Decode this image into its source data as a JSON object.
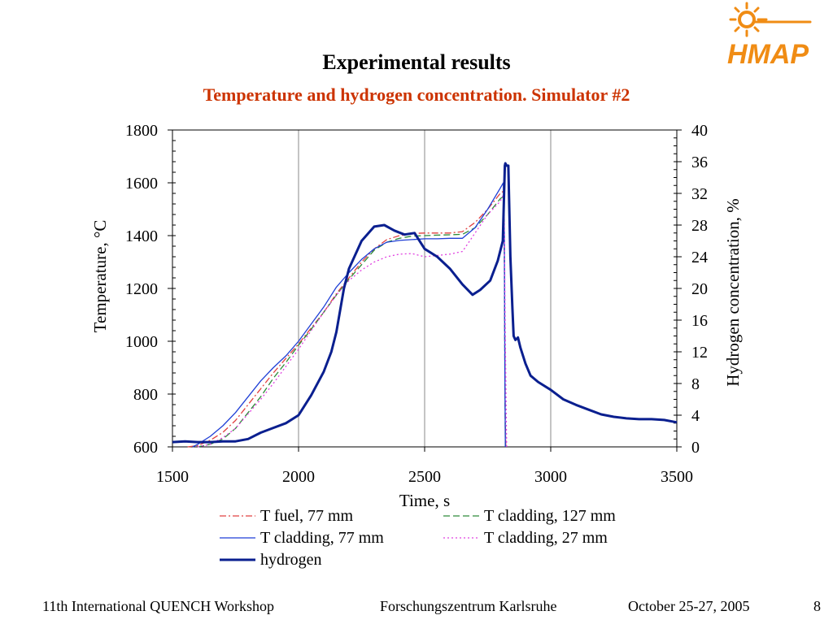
{
  "slide": {
    "title": "Experimental results",
    "subtitle": "Temperature and hydrogen concentration. Simulator #2",
    "logo_text": "HMAP",
    "footer": {
      "workshop": "11th International QUENCH Workshop",
      "institution": "Forschungszentrum Karlsruhe",
      "dates": "October 25-27, 2005",
      "page": "8"
    },
    "colors": {
      "subtitle": "#cc3300",
      "logo": "#f08c14"
    }
  },
  "chart_data": {
    "type": "line",
    "xlabel": "Time, s",
    "ylabel": "Temperature, °C",
    "y2label": "Hydrogen concentration, %",
    "xlim": [
      1500,
      3500
    ],
    "ylim": [
      600,
      1800
    ],
    "y2lim": [
      0,
      40
    ],
    "xticks": [
      1500,
      2000,
      2500,
      3000,
      3500
    ],
    "yticks": [
      600,
      800,
      1000,
      1200,
      1400,
      1600,
      1800
    ],
    "y2ticks": [
      0,
      4,
      8,
      12,
      16,
      20,
      24,
      28,
      32,
      36,
      40
    ],
    "grid": "vertical",
    "legend_position": "bottom",
    "series": [
      {
        "name": "T fuel, 77 mm",
        "axis": "left",
        "color": "#e04040",
        "style": "dashdot",
        "x": [
          1560,
          1600,
          1650,
          1700,
          1750,
          1800,
          1850,
          1900,
          1950,
          2000,
          2050,
          2100,
          2150,
          2200,
          2250,
          2300,
          2350,
          2400,
          2450,
          2500,
          2550,
          2600,
          2650,
          2700,
          2750,
          2800,
          2815,
          2818,
          2820,
          2822
        ],
        "y": [
          600,
          605,
          625,
          655,
          700,
          760,
          820,
          880,
          935,
          990,
          1050,
          1110,
          1180,
          1240,
          1300,
          1350,
          1385,
          1400,
          1408,
          1410,
          1410,
          1410,
          1415,
          1450,
          1500,
          1560,
          1570,
          1000,
          700,
          600
        ]
      },
      {
        "name": "T cladding, 127 mm",
        "axis": "left",
        "color": "#2e8b3a",
        "style": "dashed",
        "x": [
          1600,
          1650,
          1700,
          1750,
          1800,
          1850,
          1900,
          1950,
          2000,
          2050,
          2100,
          2150,
          2200,
          2250,
          2300,
          2350,
          2400,
          2450,
          2500,
          2550,
          2600,
          2650,
          2700,
          2750,
          2800,
          2815,
          2818,
          2820
        ],
        "y": [
          600,
          610,
          630,
          670,
          730,
          790,
          860,
          920,
          985,
          1045,
          1110,
          1175,
          1235,
          1290,
          1345,
          1375,
          1390,
          1398,
          1400,
          1402,
          1403,
          1405,
          1430,
          1480,
          1540,
          1550,
          900,
          600
        ]
      },
      {
        "name": "T cladding, 77 mm",
        "axis": "left",
        "color": "#1f3fd6",
        "style": "solid",
        "x": [
          1580,
          1600,
          1650,
          1700,
          1750,
          1800,
          1850,
          1900,
          1950,
          2000,
          2050,
          2100,
          2150,
          2200,
          2250,
          2300,
          2350,
          2400,
          2450,
          2500,
          2550,
          2600,
          2650,
          2700,
          2750,
          2800,
          2812,
          2816,
          2818,
          2820
        ],
        "y": [
          600,
          610,
          640,
          680,
          730,
          790,
          850,
          900,
          945,
          1000,
          1065,
          1130,
          1205,
          1260,
          1310,
          1350,
          1375,
          1382,
          1385,
          1388,
          1388,
          1390,
          1390,
          1430,
          1500,
          1580,
          1600,
          1400,
          900,
          600
        ]
      },
      {
        "name": "T cladding, 27 mm",
        "axis": "left",
        "color": "#e040e0",
        "style": "dotted",
        "x": [
          1600,
          1650,
          1700,
          1750,
          1800,
          1850,
          1900,
          1950,
          2000,
          2050,
          2100,
          2150,
          2200,
          2250,
          2300,
          2350,
          2400,
          2450,
          2500,
          2550,
          2600,
          2650,
          2700,
          2750,
          2800,
          2815,
          2820,
          2825
        ],
        "y": [
          600,
          610,
          635,
          670,
          725,
          780,
          840,
          905,
          970,
          1040,
          1110,
          1175,
          1230,
          1270,
          1300,
          1320,
          1330,
          1332,
          1320,
          1325,
          1330,
          1340,
          1410,
          1480,
          1530,
          1560,
          1000,
          600
        ]
      },
      {
        "name": "hydrogen",
        "axis": "right",
        "color": "#0a1f8f",
        "style": "solid-thick",
        "x": [
          1500,
          1550,
          1600,
          1650,
          1700,
          1750,
          1800,
          1850,
          1900,
          1950,
          2000,
          2050,
          2100,
          2130,
          2150,
          2180,
          2200,
          2250,
          2300,
          2340,
          2380,
          2420,
          2460,
          2500,
          2550,
          2600,
          2650,
          2690,
          2720,
          2760,
          2790,
          2810,
          2818,
          2820,
          2825,
          2832,
          2840,
          2848,
          2853,
          2860,
          2870,
          2880,
          2900,
          2920,
          2950,
          3000,
          3050,
          3100,
          3150,
          3200,
          3250,
          3300,
          3350,
          3400,
          3450,
          3500
        ],
        "y": [
          0.6,
          0.7,
          0.6,
          0.6,
          0.7,
          0.7,
          1.0,
          1.8,
          2.4,
          3.0,
          4.0,
          6.5,
          9.5,
          12.0,
          14.5,
          20.0,
          22.5,
          26.0,
          27.8,
          28.0,
          27.3,
          26.8,
          27.0,
          25.0,
          24.0,
          22.5,
          20.5,
          19.2,
          19.8,
          21.0,
          23.5,
          26.0,
          35.5,
          35.8,
          35.5,
          35.5,
          24.0,
          17.5,
          14.0,
          13.5,
          13.8,
          12.5,
          10.5,
          9.0,
          8.2,
          7.2,
          6.0,
          5.3,
          4.7,
          4.1,
          3.8,
          3.6,
          3.5,
          3.5,
          3.4,
          3.1
        ]
      }
    ]
  }
}
